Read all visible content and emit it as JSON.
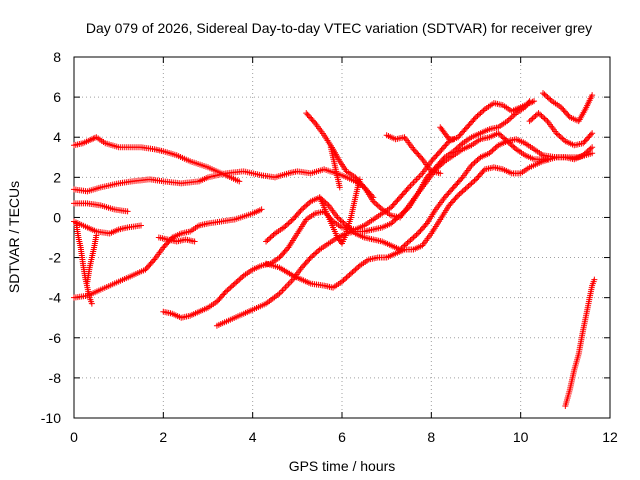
{
  "chart_data": {
    "type": "scatter",
    "title": "Day 079 of 2026, Sidereal Day-to-day VTEC variation (SDTVAR) for receiver grey",
    "xlabel": "GPS time / hours",
    "ylabel": "SDTVAR / TECUs",
    "xlim": [
      0,
      12
    ],
    "ylim": [
      -10,
      8
    ],
    "xticks": [
      0,
      2,
      4,
      6,
      8,
      10,
      12
    ],
    "yticks": [
      -10,
      -8,
      -6,
      -4,
      -2,
      0,
      2,
      4,
      6,
      8
    ],
    "xtick_labels": [
      "0",
      "2",
      "4",
      "6",
      "8",
      "10",
      "12"
    ],
    "ytick_labels": [
      "-10",
      "-8",
      "-6",
      "-4",
      "-2",
      "0",
      "2",
      "4",
      "6",
      "8"
    ],
    "grid": true,
    "marker": "plus",
    "color": "#ff0000",
    "series": [
      {
        "points": [
          [
            0.0,
            3.6
          ],
          [
            0.2,
            3.7
          ],
          [
            0.4,
            3.9
          ],
          [
            0.5,
            4.0
          ],
          [
            0.7,
            3.7
          ],
          [
            1.0,
            3.5
          ],
          [
            1.5,
            3.5
          ],
          [
            1.8,
            3.4
          ],
          [
            2.0,
            3.3
          ],
          [
            2.3,
            3.1
          ],
          [
            2.6,
            2.8
          ],
          [
            3.0,
            2.5
          ],
          [
            3.4,
            2.1
          ],
          [
            3.7,
            1.8
          ]
        ]
      },
      {
        "points": [
          [
            0.0,
            1.4
          ],
          [
            0.3,
            1.3
          ],
          [
            0.6,
            1.5
          ],
          [
            1.0,
            1.7
          ],
          [
            1.3,
            1.8
          ],
          [
            1.7,
            1.9
          ],
          [
            2.0,
            1.8
          ],
          [
            2.4,
            1.7
          ],
          [
            2.8,
            1.8
          ],
          [
            3.0,
            2.0
          ],
          [
            3.4,
            2.2
          ],
          [
            3.8,
            2.3
          ],
          [
            4.2,
            2.1
          ],
          [
            4.5,
            2.0
          ],
          [
            4.8,
            2.2
          ],
          [
            5.0,
            2.3
          ],
          [
            5.3,
            2.2
          ],
          [
            5.6,
            2.4
          ],
          [
            6.0,
            2.1
          ],
          [
            6.3,
            1.8
          ],
          [
            6.5,
            1.5
          ],
          [
            6.7,
            1.0
          ]
        ]
      },
      {
        "points": [
          [
            0.0,
            0.7
          ],
          [
            0.3,
            0.7
          ],
          [
            0.6,
            0.6
          ],
          [
            0.9,
            0.4
          ],
          [
            1.2,
            0.3
          ]
        ]
      },
      {
        "points": [
          [
            0.0,
            -0.2
          ],
          [
            0.3,
            -0.5
          ],
          [
            0.5,
            -0.7
          ],
          [
            0.8,
            -0.8
          ],
          [
            1.0,
            -0.6
          ],
          [
            1.2,
            -0.5
          ],
          [
            1.5,
            -0.4
          ]
        ]
      },
      {
        "points": [
          [
            0.05,
            -0.3
          ],
          [
            0.1,
            -1.0
          ],
          [
            0.15,
            -1.5
          ],
          [
            0.2,
            -2.3
          ],
          [
            0.25,
            -3.0
          ],
          [
            0.3,
            -3.5
          ],
          [
            0.35,
            -4.0
          ],
          [
            0.4,
            -4.3
          ]
        ]
      },
      {
        "points": [
          [
            0.3,
            -3.2
          ],
          [
            0.35,
            -2.5
          ],
          [
            0.4,
            -2.0
          ],
          [
            0.45,
            -1.5
          ],
          [
            0.5,
            -0.9
          ]
        ]
      },
      {
        "points": [
          [
            0.0,
            -4.0
          ],
          [
            0.3,
            -3.9
          ],
          [
            0.6,
            -3.6
          ],
          [
            1.0,
            -3.2
          ],
          [
            1.3,
            -2.9
          ],
          [
            1.6,
            -2.6
          ],
          [
            1.8,
            -2.1
          ],
          [
            2.0,
            -1.5
          ],
          [
            2.2,
            -1.0
          ],
          [
            2.4,
            -0.8
          ],
          [
            2.6,
            -0.7
          ],
          [
            2.8,
            -0.4
          ],
          [
            3.0,
            -0.3
          ],
          [
            3.3,
            -0.2
          ],
          [
            3.6,
            -0.1
          ],
          [
            4.0,
            0.2
          ],
          [
            4.2,
            0.4
          ]
        ]
      },
      {
        "points": [
          [
            1.9,
            -1.0
          ],
          [
            2.1,
            -1.1
          ],
          [
            2.3,
            -1.2
          ],
          [
            2.5,
            -1.1
          ],
          [
            2.7,
            -1.2
          ]
        ]
      },
      {
        "points": [
          [
            2.0,
            -4.7
          ],
          [
            2.2,
            -4.8
          ],
          [
            2.4,
            -5.0
          ],
          [
            2.6,
            -4.9
          ],
          [
            2.8,
            -4.7
          ],
          [
            3.0,
            -4.5
          ],
          [
            3.2,
            -4.2
          ],
          [
            3.4,
            -3.7
          ],
          [
            3.6,
            -3.3
          ],
          [
            3.8,
            -2.9
          ],
          [
            4.0,
            -2.6
          ],
          [
            4.2,
            -2.4
          ],
          [
            4.4,
            -2.3
          ],
          [
            4.6,
            -2.0
          ],
          [
            4.8,
            -1.5
          ],
          [
            5.0,
            -0.8
          ],
          [
            5.2,
            -0.1
          ],
          [
            5.4,
            0.2
          ],
          [
            5.6,
            0.3
          ],
          [
            5.8,
            -0.2
          ],
          [
            6.0,
            -0.5
          ],
          [
            6.3,
            -0.6
          ],
          [
            6.5,
            -0.4
          ],
          [
            6.7,
            -0.1
          ],
          [
            6.9,
            0.2
          ],
          [
            7.1,
            0.5
          ],
          [
            7.3,
            1.0
          ],
          [
            7.5,
            1.5
          ],
          [
            7.8,
            2.2
          ],
          [
            8.0,
            2.8
          ],
          [
            8.2,
            3.3
          ],
          [
            8.4,
            3.8
          ],
          [
            8.6,
            4.0
          ],
          [
            8.8,
            4.5
          ],
          [
            9.0,
            5.0
          ],
          [
            9.2,
            5.4
          ],
          [
            9.4,
            5.7
          ],
          [
            9.6,
            5.6
          ],
          [
            9.8,
            5.3
          ],
          [
            10.0,
            5.5
          ],
          [
            10.2,
            5.7
          ],
          [
            10.3,
            5.8
          ]
        ]
      },
      {
        "points": [
          [
            3.2,
            -5.4
          ],
          [
            3.5,
            -5.1
          ],
          [
            3.8,
            -4.8
          ],
          [
            4.0,
            -4.6
          ],
          [
            4.3,
            -4.3
          ],
          [
            4.6,
            -3.8
          ],
          [
            4.9,
            -3.1
          ],
          [
            5.1,
            -2.5
          ],
          [
            5.3,
            -2.0
          ],
          [
            5.5,
            -1.6
          ],
          [
            5.7,
            -1.3
          ],
          [
            5.9,
            -1.0
          ],
          [
            6.1,
            -0.8
          ],
          [
            6.3,
            -0.7
          ],
          [
            6.5,
            -0.7
          ],
          [
            6.7,
            -0.6
          ],
          [
            6.9,
            -0.5
          ],
          [
            7.1,
            -0.3
          ],
          [
            7.3,
            0.1
          ],
          [
            7.5,
            0.5
          ],
          [
            7.7,
            1.2
          ],
          [
            7.9,
            2.0
          ],
          [
            8.1,
            2.5
          ],
          [
            8.3,
            3.0
          ],
          [
            8.5,
            3.3
          ],
          [
            8.7,
            3.7
          ],
          [
            8.9,
            4.0
          ],
          [
            9.1,
            4.2
          ],
          [
            9.3,
            4.4
          ],
          [
            9.5,
            4.5
          ],
          [
            9.7,
            4.8
          ],
          [
            9.9,
            5.2
          ],
          [
            10.1,
            5.5
          ],
          [
            10.2,
            5.8
          ]
        ]
      },
      {
        "points": [
          [
            4.3,
            -2.3
          ],
          [
            4.6,
            -2.5
          ],
          [
            4.9,
            -2.9
          ],
          [
            5.1,
            -3.1
          ],
          [
            5.3,
            -3.3
          ],
          [
            5.6,
            -3.4
          ],
          [
            5.8,
            -3.5
          ],
          [
            6.0,
            -3.2
          ],
          [
            6.2,
            -2.8
          ],
          [
            6.4,
            -2.4
          ],
          [
            6.6,
            -2.1
          ],
          [
            6.8,
            -2.0
          ],
          [
            7.0,
            -2.0
          ],
          [
            7.2,
            -1.8
          ],
          [
            7.4,
            -1.6
          ],
          [
            7.6,
            -1.6
          ],
          [
            7.8,
            -1.4
          ],
          [
            8.0,
            -0.8
          ],
          [
            8.2,
            -0.1
          ],
          [
            8.4,
            0.6
          ],
          [
            8.6,
            1.1
          ],
          [
            8.8,
            1.5
          ],
          [
            9.0,
            1.9
          ],
          [
            9.2,
            2.4
          ],
          [
            9.4,
            2.5
          ],
          [
            9.6,
            2.4
          ],
          [
            9.8,
            2.2
          ],
          [
            10.0,
            2.2
          ],
          [
            10.2,
            2.5
          ],
          [
            10.5,
            2.8
          ],
          [
            10.8,
            3.0
          ],
          [
            11.0,
            3.0
          ],
          [
            11.3,
            3.0
          ],
          [
            11.6,
            3.2
          ]
        ]
      },
      {
        "points": [
          [
            4.3,
            -1.2
          ],
          [
            4.5,
            -0.8
          ],
          [
            4.7,
            -0.5
          ],
          [
            4.9,
            -0.1
          ],
          [
            5.1,
            0.4
          ],
          [
            5.3,
            0.8
          ],
          [
            5.5,
            1.0
          ],
          [
            5.7,
            0.6
          ],
          [
            5.9,
            0.0
          ],
          [
            6.1,
            -0.4
          ],
          [
            6.3,
            -0.8
          ],
          [
            6.5,
            -1.0
          ],
          [
            6.7,
            -1.1
          ],
          [
            6.9,
            -1.2
          ],
          [
            7.1,
            -1.4
          ],
          [
            7.3,
            -1.6
          ],
          [
            7.5,
            -1.2
          ],
          [
            7.7,
            -0.8
          ],
          [
            7.9,
            -0.3
          ],
          [
            8.1,
            0.4
          ],
          [
            8.3,
            1.0
          ],
          [
            8.5,
            1.5
          ],
          [
            8.7,
            2.0
          ],
          [
            8.9,
            2.6
          ],
          [
            9.1,
            3.0
          ],
          [
            9.3,
            3.2
          ],
          [
            9.5,
            3.6
          ],
          [
            9.7,
            3.8
          ],
          [
            9.9,
            3.9
          ],
          [
            10.1,
            3.7
          ],
          [
            10.3,
            3.4
          ],
          [
            10.5,
            3.1
          ],
          [
            10.8,
            3.0
          ],
          [
            11.0,
            3.0
          ],
          [
            11.2,
            2.9
          ],
          [
            11.4,
            3.1
          ],
          [
            11.6,
            3.5
          ]
        ]
      },
      {
        "points": [
          [
            5.2,
            5.2
          ],
          [
            5.4,
            4.7
          ],
          [
            5.6,
            4.1
          ],
          [
            5.8,
            3.4
          ],
          [
            5.95,
            2.8
          ],
          [
            6.1,
            2.3
          ],
          [
            6.3,
            2.0
          ],
          [
            6.5,
            1.5
          ],
          [
            6.7,
            0.8
          ],
          [
            6.9,
            0.4
          ],
          [
            7.1,
            0.1
          ],
          [
            7.3,
            0.0
          ],
          [
            7.5,
            0.6
          ],
          [
            7.7,
            1.2
          ],
          [
            7.9,
            1.8
          ],
          [
            8.1,
            2.4
          ],
          [
            8.3,
            2.8
          ],
          [
            8.5,
            3.1
          ],
          [
            8.7,
            3.4
          ],
          [
            8.9,
            3.6
          ],
          [
            9.1,
            3.9
          ],
          [
            9.3,
            4.0
          ],
          [
            9.5,
            4.2
          ],
          [
            9.7,
            3.8
          ],
          [
            9.9,
            3.4
          ],
          [
            10.1,
            3.1
          ],
          [
            10.3,
            2.9
          ],
          [
            10.6,
            2.9
          ]
        ]
      },
      {
        "points": [
          [
            5.5,
            1.0
          ],
          [
            5.6,
            0.5
          ],
          [
            5.7,
            0.0
          ],
          [
            5.8,
            -0.5
          ],
          [
            5.9,
            -1.0
          ],
          [
            6.0,
            -1.3
          ],
          [
            6.1,
            -0.8
          ]
        ]
      },
      {
        "points": [
          [
            6.1,
            -0.7
          ],
          [
            6.2,
            0.0
          ],
          [
            6.25,
            0.5
          ],
          [
            6.3,
            1.0
          ],
          [
            6.35,
            1.5
          ],
          [
            6.4,
            1.9
          ]
        ]
      },
      {
        "points": [
          [
            5.75,
            3.5
          ],
          [
            5.8,
            3.0
          ],
          [
            5.85,
            2.5
          ],
          [
            5.9,
            2.0
          ],
          [
            5.95,
            1.5
          ]
        ]
      },
      {
        "points": [
          [
            7.0,
            4.1
          ],
          [
            7.2,
            3.9
          ],
          [
            7.4,
            4.0
          ],
          [
            7.6,
            3.4
          ],
          [
            7.8,
            2.9
          ],
          [
            8.0,
            2.3
          ],
          [
            8.2,
            2.2
          ]
        ]
      },
      {
        "points": [
          [
            8.2,
            4.5
          ],
          [
            8.3,
            4.2
          ],
          [
            8.4,
            3.9
          ],
          [
            8.5,
            3.9
          ]
        ]
      },
      {
        "points": [
          [
            10.2,
            4.8
          ],
          [
            10.4,
            5.2
          ],
          [
            10.6,
            4.8
          ],
          [
            10.8,
            4.2
          ],
          [
            11.0,
            3.8
          ],
          [
            11.2,
            3.6
          ],
          [
            11.4,
            3.7
          ],
          [
            11.6,
            4.2
          ]
        ]
      },
      {
        "points": [
          [
            10.5,
            6.2
          ],
          [
            10.7,
            5.8
          ],
          [
            10.9,
            5.5
          ],
          [
            11.1,
            5.0
          ],
          [
            11.3,
            4.8
          ],
          [
            11.45,
            5.4
          ],
          [
            11.6,
            6.1
          ]
        ]
      },
      {
        "points": [
          [
            11.0,
            -9.4
          ],
          [
            11.1,
            -8.6
          ],
          [
            11.2,
            -7.6
          ],
          [
            11.3,
            -6.8
          ],
          [
            11.4,
            -5.6
          ],
          [
            11.5,
            -4.5
          ],
          [
            11.6,
            -3.4
          ],
          [
            11.65,
            -3.1
          ]
        ]
      }
    ]
  }
}
